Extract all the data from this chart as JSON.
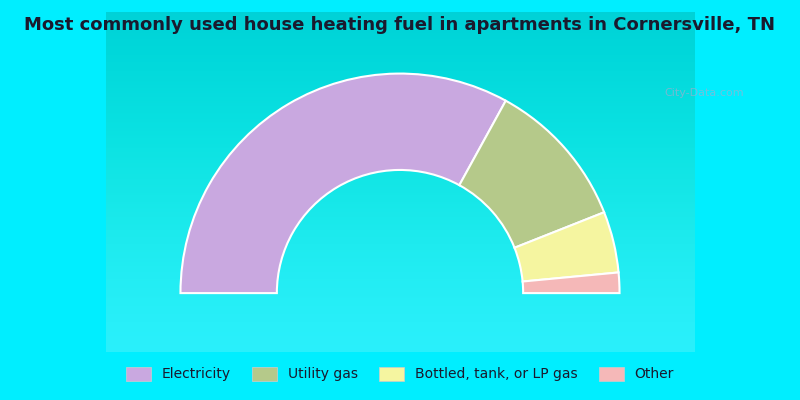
{
  "title": "Most commonly used house heating fuel in apartments in Cornersville, TN",
  "title_fontsize": 13,
  "title_color": "#1a1a2e",
  "segments": [
    {
      "label": "Electricity",
      "value": 66.0,
      "color": "#c9a8e0"
    },
    {
      "label": "Utility gas",
      "value": 22.0,
      "color": "#b5c98a"
    },
    {
      "label": "Bottled, tank, or LP gas",
      "value": 9.0,
      "color": "#f5f5a0"
    },
    {
      "label": "Other",
      "value": 3.0,
      "color": "#f5b8b8"
    }
  ],
  "bg_color": "#00eeff",
  "legend_fontsize": 10,
  "watermark": "City-Data.com"
}
